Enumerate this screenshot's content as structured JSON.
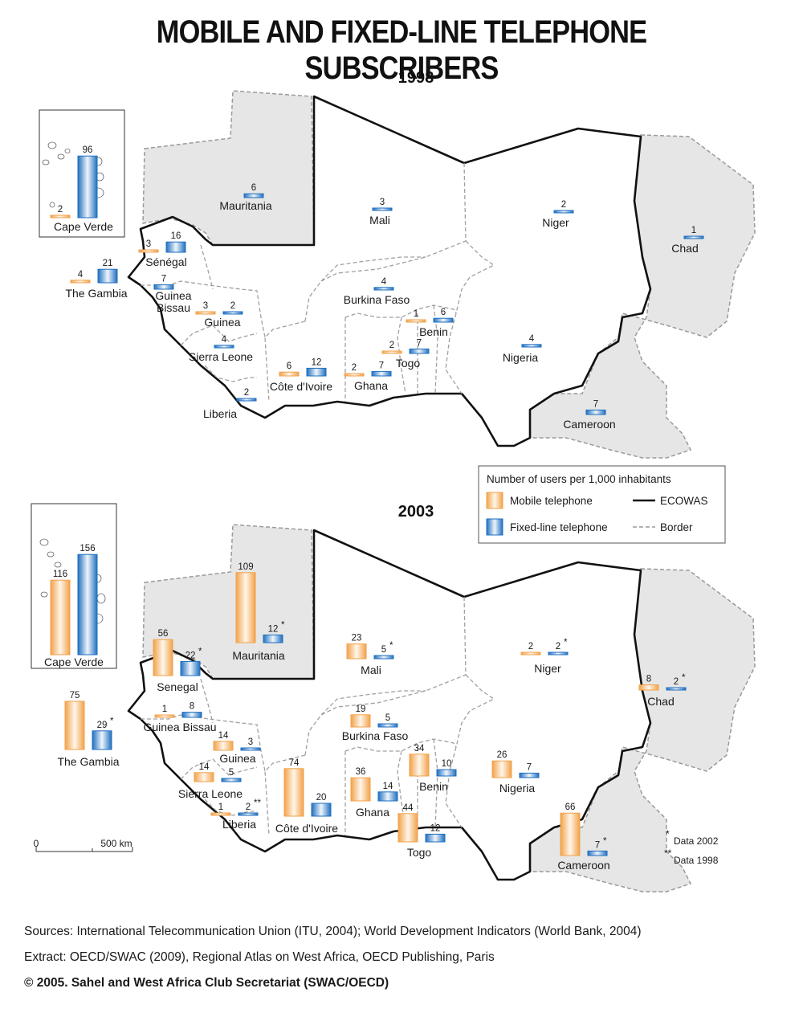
{
  "title": "MOBILE AND FIXED-LINE TELEPHONE SUBSCRIBERS",
  "legend": {
    "title": "Number of users per 1,000 inhabitants",
    "mobile": "Mobile telephone",
    "fixed": "Fixed-line telephone",
    "ecowas": "ECOWAS",
    "border": "Border"
  },
  "colors": {
    "mobile": "#f4a450",
    "fixed": "#2d7dc8",
    "nonmember_fill": "#e6e6e6",
    "ecowas_border": "#111111",
    "border": "#9a9a9a"
  },
  "notes": {
    "star": "Data 2002",
    "double_star": "Data 1998"
  },
  "scale": {
    "zero": "0",
    "distance": "500 km"
  },
  "footer": {
    "sources": "Sources: International Telecommunication Union (ITU, 2004);  World Development Indicators (World Bank, 2004)",
    "extract": "Extract: OECD/SWAC (2009), Regional Atlas on West Africa, OECD Publishing, Paris",
    "copyright": "© 2005. Sahel and West Africa Club Secretariat (SWAC/OECD)"
  },
  "chart_data": {
    "type": "map",
    "unit": "Number of users per 1,000 inhabitants",
    "series": [
      "Mobile telephone",
      "Fixed-line telephone"
    ],
    "maps": [
      {
        "year": "1998",
        "countries": [
          {
            "name": "Cape Verde",
            "mobile": 2,
            "fixed": 96
          },
          {
            "name": "Mauritania",
            "fixed": 6
          },
          {
            "name": "Mali",
            "fixed": 3
          },
          {
            "name": "Niger",
            "fixed": 2
          },
          {
            "name": "Chad",
            "fixed": 1
          },
          {
            "name": "Senegal",
            "label": "Sénégal",
            "mobile": 3,
            "fixed": 16
          },
          {
            "name": "The Gambia",
            "mobile": 4,
            "fixed": 21
          },
          {
            "name": "Guinea Bissau",
            "fixed": 7
          },
          {
            "name": "Guinea",
            "mobile": 3,
            "fixed": 2
          },
          {
            "name": "Sierra Leone",
            "fixed": 4
          },
          {
            "name": "Liberia",
            "fixed": 2
          },
          {
            "name": "Côte d'Ivoire",
            "mobile": 6,
            "fixed": 12
          },
          {
            "name": "Burkina Faso",
            "fixed": 4
          },
          {
            "name": "Ghana",
            "mobile": 2,
            "fixed": 7
          },
          {
            "name": "Togo",
            "mobile": 2,
            "fixed": 7
          },
          {
            "name": "Benin",
            "mobile": 1,
            "fixed": 6
          },
          {
            "name": "Nigeria",
            "fixed": 4
          },
          {
            "name": "Cameroon",
            "fixed": 7
          }
        ]
      },
      {
        "year": "2003",
        "countries": [
          {
            "name": "Cape Verde",
            "mobile": 116,
            "fixed": 156
          },
          {
            "name": "Mauritania",
            "mobile": 109,
            "fixed": 12,
            "fixed_note": "*"
          },
          {
            "name": "Senegal",
            "mobile": 56,
            "fixed": 22,
            "fixed_note": "*"
          },
          {
            "name": "The Gambia",
            "mobile": 75,
            "fixed": 29,
            "fixed_note": "*"
          },
          {
            "name": "Mali",
            "mobile": 23,
            "fixed": 5,
            "fixed_note": "*"
          },
          {
            "name": "Niger",
            "mobile": 2,
            "fixed": 2,
            "fixed_note": "*"
          },
          {
            "name": "Chad",
            "mobile": 8,
            "fixed": 2,
            "fixed_note": "*"
          },
          {
            "name": "Guinea Bissau",
            "mobile": 1,
            "fixed": 8
          },
          {
            "name": "Guinea",
            "mobile": 14,
            "fixed": 3
          },
          {
            "name": "Sierra Leone",
            "mobile": 14,
            "fixed": 5
          },
          {
            "name": "Liberia",
            "mobile": 1,
            "fixed": 2,
            "fixed_note": "**"
          },
          {
            "name": "Côte d'Ivoire",
            "mobile": 74,
            "fixed": 20
          },
          {
            "name": "Burkina Faso",
            "mobile": 19,
            "fixed": 5
          },
          {
            "name": "Ghana",
            "mobile": 36,
            "fixed": 14
          },
          {
            "name": "Togo",
            "mobile": 44,
            "fixed": 12
          },
          {
            "name": "Benin",
            "mobile": 34,
            "fixed": 10
          },
          {
            "name": "Nigeria",
            "mobile": 26,
            "fixed": 7
          },
          {
            "name": "Cameroon",
            "mobile": 66,
            "fixed": 7,
            "fixed_note": "*"
          }
        ]
      }
    ]
  }
}
